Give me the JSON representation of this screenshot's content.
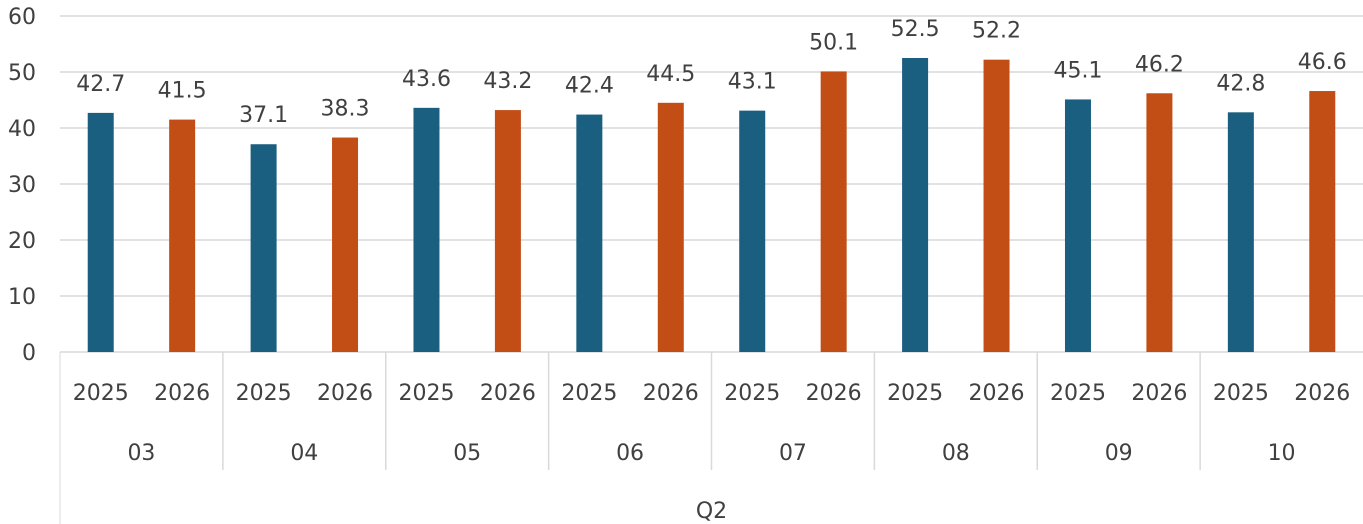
{
  "chart_data": {
    "type": "bar",
    "x_levels": {
      "group": "Q2",
      "months": [
        "03",
        "04",
        "05",
        "06",
        "07",
        "08",
        "09",
        "10"
      ],
      "years": [
        "2025",
        "2026"
      ]
    },
    "categories": [
      "03 2025",
      "03 2026",
      "04 2025",
      "04 2026",
      "05 2025",
      "05 2026",
      "06 2025",
      "06 2026",
      "07 2025",
      "07 2026",
      "08 2025",
      "08 2026",
      "09 2025",
      "09 2026",
      "10 2025",
      "10 2026"
    ],
    "values": [
      42.7,
      41.5,
      37.1,
      38.3,
      43.6,
      43.2,
      42.4,
      44.5,
      43.1,
      50.1,
      52.5,
      52.2,
      45.1,
      46.2,
      42.8,
      46.6
    ],
    "year_colors": {
      "2025": "#1a5e80",
      "2026": "#c24e16"
    },
    "ylim": [
      0,
      60
    ],
    "yticks": [
      0,
      10,
      20,
      30,
      40,
      50,
      60
    ],
    "grid": true,
    "data_labels": true,
    "title": "",
    "xlabel": "",
    "ylabel": ""
  }
}
